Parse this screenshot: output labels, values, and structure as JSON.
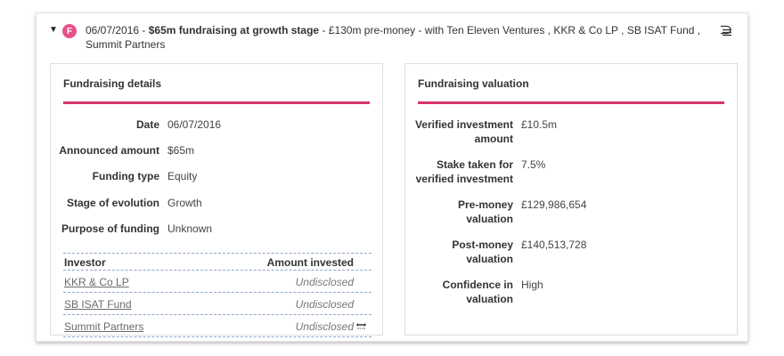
{
  "header": {
    "toggle_glyph": "▼",
    "badge_letter": "F",
    "date": "06/07/2016",
    "separator": " - ",
    "title": "$65m fundraising at growth stage",
    "detail": " - £130m pre-money - with Ten Eleven Ventures , KKR & Co LP , SB ISAT Fund , Summit Partners",
    "stack_icon": "stack-icon"
  },
  "fundraising_details": {
    "title": "Fundraising details",
    "rows": [
      {
        "label": "Date",
        "value": "06/07/2016"
      },
      {
        "label": "Announced amount",
        "value": "$65m"
      },
      {
        "label": "Funding type",
        "value": "Equity"
      },
      {
        "label": "Stage of evolution",
        "value": "Growth"
      },
      {
        "label": "Purpose of funding",
        "value": "Unknown"
      }
    ],
    "investor_table": {
      "col_investor": "Investor",
      "col_amount": "Amount invested",
      "rows": [
        {
          "name": "KKR & Co LP",
          "amount": "Undisclosed"
        },
        {
          "name": "SB ISAT Fund",
          "amount": "Undisclosed"
        },
        {
          "name": "Summit Partners",
          "amount": "Undisclosed"
        }
      ]
    }
  },
  "fundraising_valuation": {
    "title": "Fundraising valuation",
    "rows": [
      {
        "label_line1": "Verified investment",
        "label_line2": "amount",
        "value": "£10.5m"
      },
      {
        "label_line1": "Stake taken for",
        "label_line2": "verified investment",
        "value": "7.5%"
      },
      {
        "label_line1": "Pre-money",
        "label_line2": "valuation",
        "value": "£129,986,654"
      },
      {
        "label_line1": "Post-money",
        "label_line2": "valuation",
        "value": "£140,513,728"
      },
      {
        "label_line1": "Confidence in",
        "label_line2": "valuation",
        "value": "High"
      }
    ]
  },
  "colors": {
    "accent": "#d6336c",
    "badge": "#e8508b",
    "table_rule": "#8fa7c9"
  }
}
